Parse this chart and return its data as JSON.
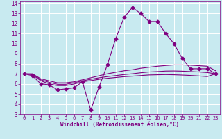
{
  "xlabel": "Windchill (Refroidissement éolien,°C)",
  "background_color": "#c8eaf0",
  "line_color": "#800080",
  "grid_color": "#ffffff",
  "xlim": [
    -0.5,
    23.5
  ],
  "ylim": [
    3,
    14.2
  ],
  "xticks": [
    0,
    1,
    2,
    3,
    4,
    5,
    6,
    7,
    8,
    9,
    10,
    11,
    12,
    13,
    14,
    15,
    16,
    17,
    18,
    19,
    20,
    21,
    22,
    23
  ],
  "yticks": [
    3,
    4,
    5,
    6,
    7,
    8,
    9,
    10,
    11,
    12,
    13,
    14
  ],
  "series": [
    {
      "x": [
        0,
        1,
        2,
        3,
        4,
        5,
        6,
        7,
        8,
        9,
        10,
        11,
        12,
        13,
        14,
        15,
        16,
        17,
        18,
        19,
        20,
        21,
        22,
        23
      ],
      "y": [
        7.0,
        6.8,
        6.0,
        5.9,
        5.4,
        5.5,
        5.6,
        6.2,
        3.4,
        5.7,
        7.9,
        10.5,
        12.6,
        13.6,
        13.0,
        12.2,
        12.2,
        11.0,
        10.0,
        8.5,
        7.5,
        7.5,
        7.5,
        7.0
      ],
      "marker": "D",
      "markersize": 2.5,
      "with_markers": true
    },
    {
      "x": [
        0,
        1,
        2,
        3,
        4,
        5,
        6,
        7,
        8,
        9,
        10,
        11,
        12,
        13,
        14,
        15,
        16,
        17,
        18,
        19,
        20,
        21,
        22,
        23
      ],
      "y": [
        7.0,
        7.0,
        6.5,
        6.3,
        6.1,
        6.1,
        6.2,
        6.4,
        6.6,
        6.8,
        7.0,
        7.15,
        7.3,
        7.4,
        7.55,
        7.65,
        7.75,
        7.82,
        7.88,
        7.88,
        7.85,
        7.8,
        7.75,
        7.3
      ],
      "with_markers": false
    },
    {
      "x": [
        0,
        1,
        2,
        3,
        4,
        5,
        6,
        7,
        8,
        9,
        10,
        11,
        12,
        13,
        14,
        15,
        16,
        17,
        18,
        19,
        20,
        21,
        22,
        23
      ],
      "y": [
        7.0,
        6.95,
        6.4,
        6.15,
        5.95,
        5.95,
        6.1,
        6.3,
        6.45,
        6.6,
        6.72,
        6.82,
        6.92,
        7.0,
        7.1,
        7.18,
        7.22,
        7.27,
        7.28,
        7.26,
        7.22,
        7.18,
        7.12,
        7.0
      ],
      "with_markers": false
    },
    {
      "x": [
        0,
        1,
        2,
        3,
        4,
        5,
        6,
        7,
        8,
        9,
        10,
        11,
        12,
        13,
        14,
        15,
        16,
        17,
        18,
        19,
        20,
        21,
        22,
        23
      ],
      "y": [
        7.0,
        6.9,
        6.3,
        6.0,
        5.82,
        5.82,
        5.98,
        6.2,
        6.32,
        6.45,
        6.55,
        6.63,
        6.71,
        6.76,
        6.82,
        6.88,
        6.9,
        6.92,
        6.9,
        6.87,
        6.83,
        6.78,
        6.72,
        7.0
      ],
      "with_markers": false
    }
  ]
}
